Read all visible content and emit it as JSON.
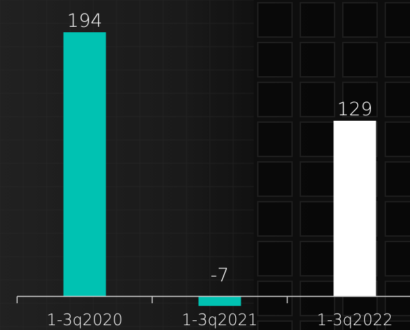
{
  "chart_data": {
    "type": "bar",
    "categories": [
      "1-3q2020",
      "1-3q2021",
      "1-3q2022"
    ],
    "values": [
      194,
      -7,
      129
    ],
    "value_labels": [
      "194",
      "-7",
      "129"
    ],
    "title": "",
    "xlabel": "",
    "ylabel": "",
    "grid": false,
    "legend": "none",
    "colors": {
      "highlight": "#00c2b2",
      "current": "#ffffff",
      "axis": "#cfcfcf",
      "background": "#141414"
    },
    "bar_colors": [
      "#00c2b2",
      "#00c2b2",
      "#ffffff"
    ]
  }
}
